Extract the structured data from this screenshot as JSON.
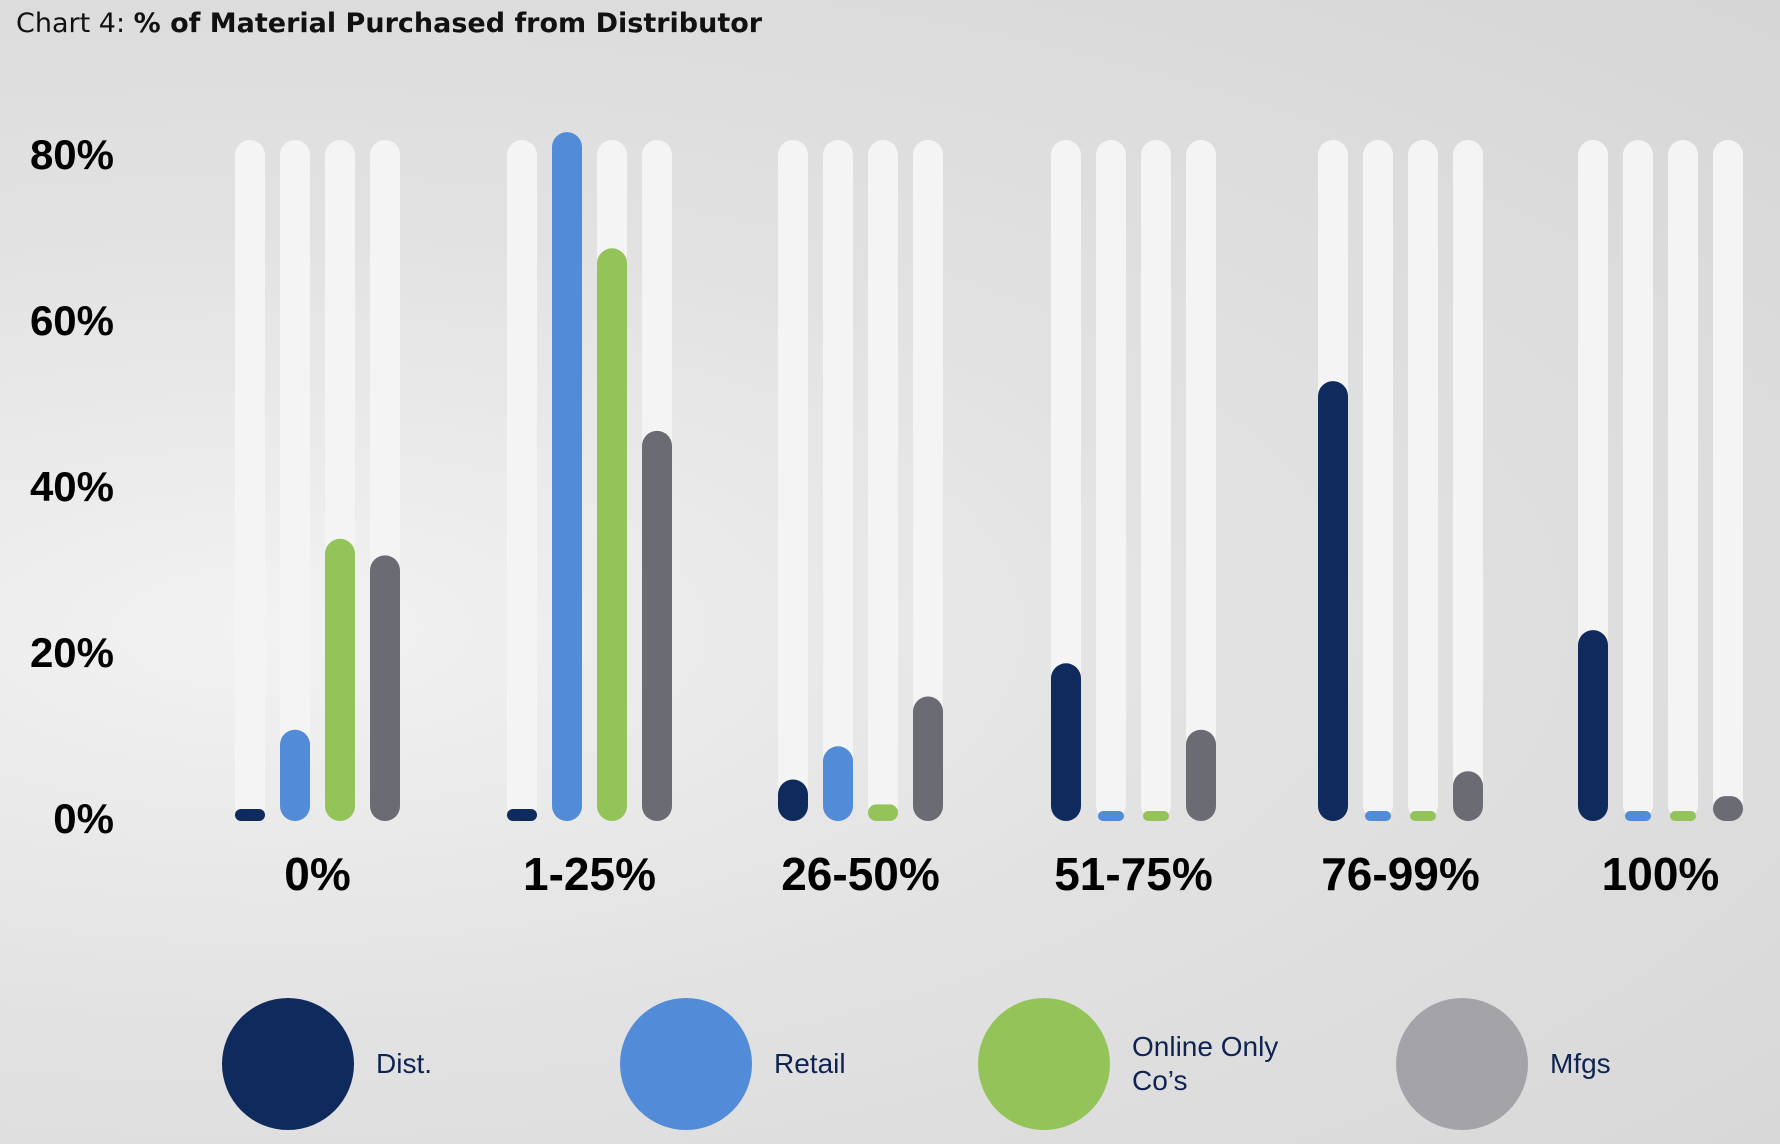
{
  "title": {
    "prefix": "Chart 4:",
    "main": "% of Material Purchased from Distributor"
  },
  "chart_data": {
    "type": "bar",
    "title": "Chart 4: % of Material Purchased from Distributor",
    "categories": [
      "0%",
      "1-25%",
      "26-50%",
      "51-75%",
      "76-99%",
      "100%"
    ],
    "series": [
      {
        "name": "Dist.",
        "color": "#0f2a5c",
        "values": [
          1,
          1,
          5,
          19,
          53,
          23
        ]
      },
      {
        "name": "Retail",
        "color": "#528bd8",
        "values": [
          11,
          83,
          9,
          1,
          1,
          1
        ]
      },
      {
        "name": "Online Only Co's",
        "color": "#94c35a",
        "values": [
          34,
          69,
          2,
          1,
          1,
          1
        ]
      },
      {
        "name": "Mfgs",
        "color": "#6b6b73",
        "values": [
          32,
          47,
          15,
          11,
          6,
          3
        ]
      }
    ],
    "yticks": [
      "80%",
      "60%",
      "40%",
      "20%",
      "0%"
    ],
    "ylim": [
      0,
      83
    ],
    "track_color": "#f4f4f4",
    "legend_position": "bottom",
    "grid": false
  },
  "legend": [
    {
      "label": "Dist.",
      "color": "#0f2a5c"
    },
    {
      "label": "Retail",
      "color": "#528bd8"
    },
    {
      "label": "Online Only Co’s",
      "color": "#94c35a"
    },
    {
      "label": "Mfgs",
      "color": "#a4a4a8"
    }
  ]
}
